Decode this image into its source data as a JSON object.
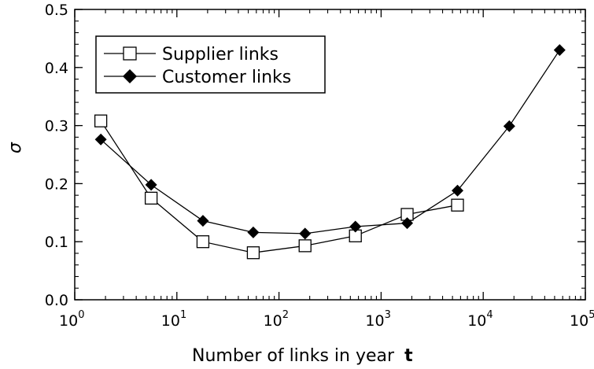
{
  "chart_data": {
    "type": "line",
    "title": "",
    "xlabel": "Number of links in year",
    "xlabel_var": "t",
    "ylabel": "σ",
    "x_scale": "log",
    "xlim": [
      1,
      100000
    ],
    "ylim": [
      0.0,
      0.5
    ],
    "x_ticks": [
      {
        "base": "10",
        "exp": "0"
      },
      {
        "base": "10",
        "exp": "1"
      },
      {
        "base": "10",
        "exp": "2"
      },
      {
        "base": "10",
        "exp": "3"
      },
      {
        "base": "10",
        "exp": "4"
      },
      {
        "base": "10",
        "exp": "5"
      }
    ],
    "y_ticks": [
      "0.0",
      "0.1",
      "0.2",
      "0.3",
      "0.4",
      "0.5"
    ],
    "grid": false,
    "legend_position": "top-left",
    "series": [
      {
        "name": "Supplier links",
        "marker": "open-square",
        "color": "#000000",
        "x": [
          1.8,
          5.6,
          18,
          56,
          180,
          560,
          1800,
          5600
        ],
        "y": [
          0.308,
          0.175,
          0.1,
          0.081,
          0.093,
          0.11,
          0.147,
          0.163
        ]
      },
      {
        "name": "Customer links",
        "marker": "filled-diamond",
        "color": "#000000",
        "x": [
          1.8,
          5.6,
          18,
          56,
          180,
          560,
          1800,
          5600,
          18000,
          56000
        ],
        "y": [
          0.276,
          0.198,
          0.136,
          0.116,
          0.114,
          0.126,
          0.132,
          0.188,
          0.299,
          0.43
        ]
      }
    ]
  }
}
